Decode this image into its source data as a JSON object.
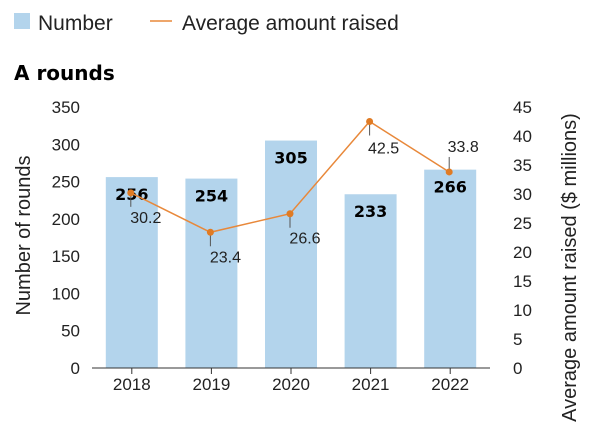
{
  "legend": {
    "number_label": "Number",
    "average_label": "Average amount raised"
  },
  "colors": {
    "bar": "#b3d4ec",
    "line": "#e8883a",
    "point": "#e07b24",
    "axis": "#333333",
    "leader": "#555555"
  },
  "chart_data": {
    "type": "bar",
    "title": "A rounds",
    "categories": [
      "2018",
      "2019",
      "2020",
      "2021",
      "2022"
    ],
    "series": [
      {
        "name": "Number",
        "type": "bar",
        "axis": "left",
        "values": [
          256,
          254,
          305,
          233,
          266
        ],
        "labels": [
          "256",
          "254",
          "305",
          "233",
          "266"
        ]
      },
      {
        "name": "Average amount raised",
        "type": "line",
        "axis": "right",
        "values": [
          30.2,
          23.4,
          26.6,
          42.5,
          33.8
        ],
        "labels": [
          "30.2",
          "23.4",
          "26.6",
          "42.5",
          "33.8"
        ]
      }
    ],
    "ylabel": "Number of rounds",
    "ylim": [
      0,
      350
    ],
    "yticks": [
      "0",
      "50",
      "100",
      "150",
      "200",
      "250",
      "300",
      "350"
    ],
    "y2label": "Average amount raised ($ millions)",
    "y2lim": [
      0,
      45
    ],
    "y2ticks": [
      "0",
      "5",
      "10",
      "15",
      "20",
      "25",
      "30",
      "35",
      "40",
      "45"
    ],
    "grid": false,
    "legend_position": "top-left"
  }
}
